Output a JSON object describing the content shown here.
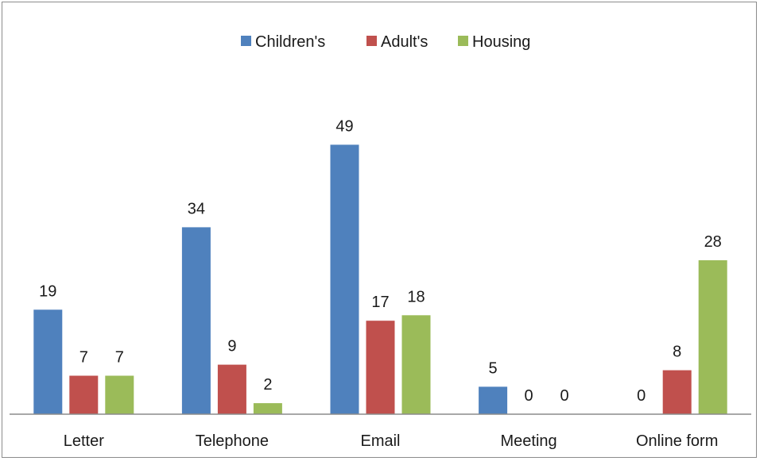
{
  "chart_data": {
    "type": "bar",
    "categories": [
      "Letter",
      "Telephone",
      "Email",
      "Meeting",
      "Online form"
    ],
    "series": [
      {
        "name": "Children's",
        "values": [
          19,
          34,
          49,
          5,
          0
        ],
        "color": "#4f81bd"
      },
      {
        "name": "Adult's",
        "values": [
          7,
          9,
          17,
          0,
          8
        ],
        "color": "#c0504d"
      },
      {
        "name": "Housing",
        "values": [
          7,
          2,
          18,
          0,
          28
        ],
        "color": "#9bbb59"
      }
    ],
    "title": "",
    "xlabel": "",
    "ylabel": "",
    "ylim": [
      0,
      55
    ],
    "legend_position": "top",
    "grid": false,
    "data_labels": true
  }
}
